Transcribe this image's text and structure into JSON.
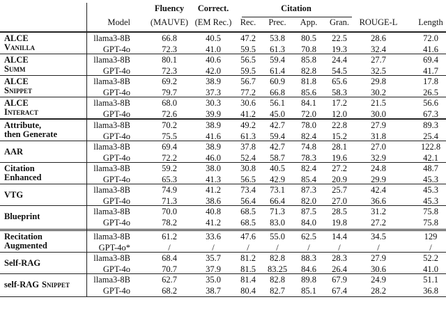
{
  "header": {
    "top": [
      "Fluency",
      "Correct.",
      "Citation"
    ],
    "columns": [
      "Model",
      "(MAUVE)",
      "(EM Rec.)",
      "Rec.",
      "Prec.",
      "App.",
      "Gran.",
      "ROUGE-L",
      "Length"
    ]
  },
  "sections": [
    {
      "groups": [
        {
          "method": [
            "ALCE"
          ],
          "variant": "Vanilla",
          "rows": [
            {
              "model": "llama3-8B",
              "values": [
                "66.8",
                "40.5",
                "47.2",
                "53.8",
                "80.5",
                "22.5",
                "28.6",
                "72.0"
              ]
            },
            {
              "model": "GPT-4o",
              "values": [
                "72.3",
                "41.0",
                "59.5",
                "61.3",
                "70.8",
                "19.3",
                "32.4",
                "41.6"
              ]
            }
          ]
        },
        {
          "method": [
            "ALCE"
          ],
          "variant": "Summ",
          "rows": [
            {
              "model": "llama3-8B",
              "values": [
                "80.1",
                "40.6",
                "56.5",
                "59.4",
                "85.8",
                "24.4",
                "27.7",
                "69.4"
              ]
            },
            {
              "model": "GPT-4o",
              "values": [
                "72.3",
                "42.0",
                "59.5",
                "61.4",
                "82.8",
                "54.5",
                "32.5",
                "41.7"
              ]
            }
          ]
        },
        {
          "method": [
            "ALCE"
          ],
          "variant": "Snippet",
          "rows": [
            {
              "model": "llama3-8B",
              "values": [
                "69.2",
                "38.9",
                "56.7",
                "60.9",
                "81.8",
                "65.6",
                "29.8",
                "17.8"
              ]
            },
            {
              "model": "GPT-4o",
              "values": [
                "79.7",
                "37.3",
                "77.2",
                "66.8",
                "85.6",
                "58.3",
                "30.2",
                "26.5"
              ]
            }
          ]
        },
        {
          "method": [
            "ALCE"
          ],
          "variant": "Interact",
          "rows": [
            {
              "model": "llama3-8B",
              "values": [
                "68.0",
                "30.3",
                "30.6",
                "56.1",
                "84.1",
                "17.2",
                "21.5",
                "56.6"
              ]
            },
            {
              "model": "GPT-4o",
              "values": [
                "72.6",
                "39.9",
                "41.2",
                "45.0",
                "72.0",
                "12.0",
                "30.0",
                "67.3"
              ]
            }
          ]
        }
      ]
    },
    {
      "groups": [
        {
          "method": [
            "Attribute,",
            "then Generate"
          ],
          "rows": [
            {
              "model": "llama3-8B",
              "values": [
                "70.2",
                "38.9",
                "49.2",
                "42.7",
                "78.0",
                "22.8",
                "27.9",
                "89.3"
              ]
            },
            {
              "model": "GPT-4o",
              "values": [
                "75.5",
                "41.6",
                "61.3",
                "59.4",
                "82.4",
                "15.2",
                "31.8",
                "25.4"
              ]
            }
          ]
        },
        {
          "method": [
            "AAR"
          ],
          "rows": [
            {
              "model": "llama3-8B",
              "values": [
                "69.4",
                "38.9",
                "37.8",
                "42.7",
                "74.8",
                "28.1",
                "27.0",
                "122.8"
              ]
            },
            {
              "model": "GPT-4o",
              "values": [
                "72.2",
                "46.0",
                "52.4",
                "58.7",
                "78.3",
                "19.6",
                "32.9",
                "42.1"
              ]
            }
          ]
        },
        {
          "method": [
            "Citation",
            "Enhanced"
          ],
          "rows": [
            {
              "model": "llama3-8B",
              "values": [
                "59.2",
                "38.0",
                "30.8",
                "40.5",
                "82.4",
                "27.2",
                "24.8",
                "48.7"
              ]
            },
            {
              "model": "GPT-4o",
              "values": [
                "65.3",
                "41.3",
                "56.5",
                "42.9",
                "85.4",
                "20.9",
                "29.9",
                "45.3"
              ]
            }
          ]
        },
        {
          "method": [
            "VTG"
          ],
          "rows": [
            {
              "model": "llama3-8B",
              "values": [
                "74.9",
                "41.2",
                "73.4",
                "73.1",
                "87.3",
                "25.7",
                "42.4",
                "45.3"
              ]
            },
            {
              "model": "GPT-4o",
              "values": [
                "71.3",
                "38.6",
                "56.4",
                "66.4",
                "82.0",
                "27.0",
                "36.6",
                "45.3"
              ]
            }
          ]
        },
        {
          "method": [
            "Blueprint"
          ],
          "rows": [
            {
              "model": "llama3-8B",
              "values": [
                "70.0",
                "40.8",
                "68.5",
                "71.3",
                "87.5",
                "28.5",
                "31.2",
                "75.8"
              ]
            },
            {
              "model": "GPT-4o",
              "values": [
                "78.2",
                "41.2",
                "68.5",
                "83.0",
                "84.0",
                "19.8",
                "27.2",
                "75.8"
              ]
            }
          ]
        }
      ]
    },
    {
      "groups": [
        {
          "method": [
            "Recitation",
            "Augmented"
          ],
          "rows": [
            {
              "model": "llama3-8B",
              "values": [
                "61.2",
                "33.6",
                "47.6",
                "55.0",
                "62.5",
                "14.4",
                "34.5",
                "129"
              ]
            },
            {
              "model": "GPT-4o*",
              "values": [
                "/",
                "/",
                "/",
                "/",
                "/",
                "/",
                "/",
                "/"
              ]
            }
          ]
        },
        {
          "method": [
            "Self-RAG"
          ],
          "rows": [
            {
              "model": "llama3-8B",
              "values": [
                "68.4",
                "35.7",
                "81.2",
                "82.8",
                "88.3",
                "28.3",
                "27.9",
                "52.2"
              ]
            },
            {
              "model": "GPT-4o",
              "values": [
                "70.7",
                "37.9",
                "81.5",
                "83.25",
                "84.6",
                "26.4",
                "30.6",
                "41.0"
              ]
            }
          ]
        },
        {
          "method": [
            "self-RAG"
          ],
          "variant": "Snippet",
          "rows": [
            {
              "model": "llama3-8B",
              "values": [
                "62.7",
                "35.0",
                "81.4",
                "82.8",
                "89.8",
                "67.9",
                "24.9",
                "51.1"
              ]
            },
            {
              "model": "GPT-4o",
              "values": [
                "68.2",
                "38.7",
                "80.4",
                "82.7",
                "85.1",
                "67.4",
                "28.2",
                "36.8"
              ]
            }
          ]
        }
      ]
    }
  ]
}
